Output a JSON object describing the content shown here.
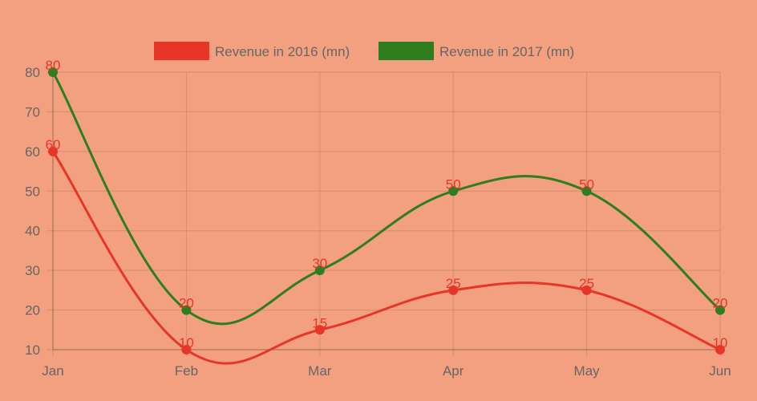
{
  "chart_data": {
    "type": "line",
    "title": "",
    "xlabel": "",
    "ylabel": "",
    "categories": [
      "Jan",
      "Feb",
      "Mar",
      "Apr",
      "May",
      "Jun"
    ],
    "yticks": [
      10,
      20,
      30,
      40,
      50,
      60,
      70,
      80
    ],
    "ylim": [
      10,
      80
    ],
    "grid": true,
    "legend_position": "top-center",
    "series": [
      {
        "name": "Revenue in 2016 (mn)",
        "color": "#e8352a",
        "values": [
          60,
          10,
          15,
          25,
          25,
          10
        ],
        "labels": [
          "60",
          "10",
          "15",
          "25",
          "25",
          "10"
        ]
      },
      {
        "name": "Revenue in 2017 (mn)",
        "color": "#2e7d1e",
        "values": [
          80,
          20,
          30,
          50,
          50,
          20
        ],
        "labels": [
          "80",
          "20",
          "30",
          "50",
          "50",
          "20"
        ]
      }
    ],
    "data_label_color": "#e8352a"
  }
}
